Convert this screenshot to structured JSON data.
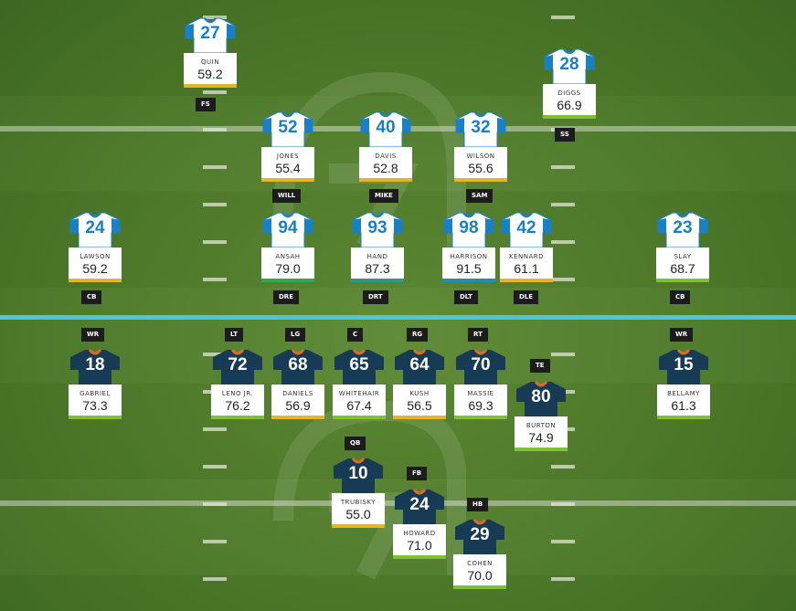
{
  "colors": {
    "grade_excellent": "#2fa84f",
    "grade_good": "#7ec132",
    "grade_average": "#e2b62a",
    "grade_below": "#d9a92a",
    "offense_jersey": "#173b54",
    "offense_trim": "#e06a26",
    "defense_jersey": "#ffffff",
    "defense_trim": "#1a80c4",
    "line_of_scrimmage": "#4cc6de"
  },
  "players": [
    {
      "id": "quin",
      "side": "defense",
      "number": "27",
      "name": "QUIN",
      "grade": "59.2",
      "grade_color": "#e2b62a"
    },
    {
      "id": "diggs",
      "side": "defense",
      "number": "28",
      "name": "DIGGS",
      "grade": "66.9",
      "grade_color": "#7ec132"
    },
    {
      "id": "jones",
      "side": "defense",
      "number": "52",
      "name": "JONES",
      "grade": "55.4",
      "grade_color": "#e2b62a"
    },
    {
      "id": "davis",
      "side": "defense",
      "number": "40",
      "name": "DAVIS",
      "grade": "52.8",
      "grade_color": "#e2b62a"
    },
    {
      "id": "wilson",
      "side": "defense",
      "number": "32",
      "name": "WILSON",
      "grade": "55.6",
      "grade_color": "#e2b62a"
    },
    {
      "id": "lawson",
      "side": "defense",
      "number": "24",
      "name": "LAWSON",
      "grade": "59.2",
      "grade_color": "#e2b62a"
    },
    {
      "id": "ansah",
      "side": "defense",
      "number": "94",
      "name": "ANSAH",
      "grade": "79.0",
      "grade_color": "#2fa84f"
    },
    {
      "id": "hand",
      "side": "defense",
      "number": "93",
      "name": "HAND",
      "grade": "87.3",
      "grade_color": "#2a9a82"
    },
    {
      "id": "harrison",
      "side": "defense",
      "number": "98",
      "name": "HARRISON",
      "grade": "91.5",
      "grade_color": "#1f8fb0"
    },
    {
      "id": "kennard",
      "side": "defense",
      "number": "42",
      "name": "KENNARD",
      "grade": "61.1",
      "grade_color": "#e2b62a"
    },
    {
      "id": "slay",
      "side": "defense",
      "number": "23",
      "name": "SLAY",
      "grade": "68.7",
      "grade_color": "#7ec132"
    },
    {
      "id": "gabriel",
      "side": "offense",
      "number": "18",
      "name": "GABRIEL",
      "grade": "73.3",
      "grade_color": "#7ec132"
    },
    {
      "id": "leno",
      "side": "offense",
      "number": "72",
      "name": "LENO JR.",
      "grade": "76.2",
      "grade_color": "#7ec132"
    },
    {
      "id": "daniels",
      "side": "offense",
      "number": "68",
      "name": "DANIELS",
      "grade": "56.9",
      "grade_color": "#e2b62a"
    },
    {
      "id": "whitehair",
      "side": "offense",
      "number": "65",
      "name": "WHITEHAIR",
      "grade": "67.4",
      "grade_color": "#7ec132"
    },
    {
      "id": "kush",
      "side": "offense",
      "number": "64",
      "name": "KUSH",
      "grade": "56.5",
      "grade_color": "#e2b62a"
    },
    {
      "id": "massie",
      "side": "offense",
      "number": "70",
      "name": "MASSIE",
      "grade": "69.3",
      "grade_color": "#7ec132"
    },
    {
      "id": "burton",
      "side": "offense",
      "number": "80",
      "name": "BURTON",
      "grade": "74.9",
      "grade_color": "#7ec132"
    },
    {
      "id": "bellamy",
      "side": "offense",
      "number": "15",
      "name": "BELLAMY",
      "grade": "61.3",
      "grade_color": "#7ec132"
    },
    {
      "id": "trubisky",
      "side": "offense",
      "number": "10",
      "name": "TRUBISKY",
      "grade": "55.0",
      "grade_color": "#e2b62a"
    },
    {
      "id": "howard",
      "side": "offense",
      "number": "24",
      "name": "HOWARD",
      "grade": "71.0",
      "grade_color": "#7ec132"
    },
    {
      "id": "cohen",
      "side": "offense",
      "number": "29",
      "name": "COHEN",
      "grade": "70.0",
      "grade_color": "#7ec132"
    }
  ],
  "positions": {
    "fs": "FS",
    "ss": "SS",
    "will": "WILL",
    "mike": "MIKE",
    "sam": "SAM",
    "cb_left": "CB",
    "dre": "DRE",
    "drt": "DRT",
    "dlt": "DLT",
    "dle": "DLE",
    "cb_right": "CB",
    "wr_left": "WR",
    "lt": "LT",
    "lg": "LG",
    "c": "C",
    "rg": "RG",
    "rt": "RT",
    "te": "TE",
    "wr_right": "WR",
    "qb": "QB",
    "fb": "FB",
    "hb": "HB"
  }
}
